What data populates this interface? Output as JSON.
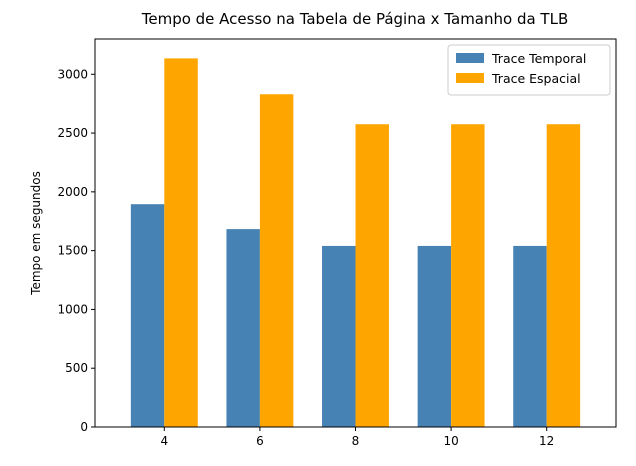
{
  "chart_data": {
    "type": "bar",
    "title": "Tempo de Acesso na Tabela de Página x Tamanho da TLB",
    "xlabel": "",
    "ylabel": "Tempo em segundos",
    "categories": [
      "4",
      "6",
      "8",
      "10",
      "12"
    ],
    "series": [
      {
        "name": "Trace Temporal",
        "color": "#4682b4",
        "values": [
          1895,
          1683,
          1540,
          1540,
          1540
        ]
      },
      {
        "name": "Trace Espacial",
        "color": "#ffa500",
        "values": [
          3135,
          2830,
          2575,
          2575,
          2575
        ]
      }
    ],
    "ylim": [
      0,
      3300
    ],
    "yticks": [
      0,
      500,
      1000,
      1500,
      2000,
      2500,
      3000
    ],
    "grid": false,
    "legend": "top-right"
  }
}
